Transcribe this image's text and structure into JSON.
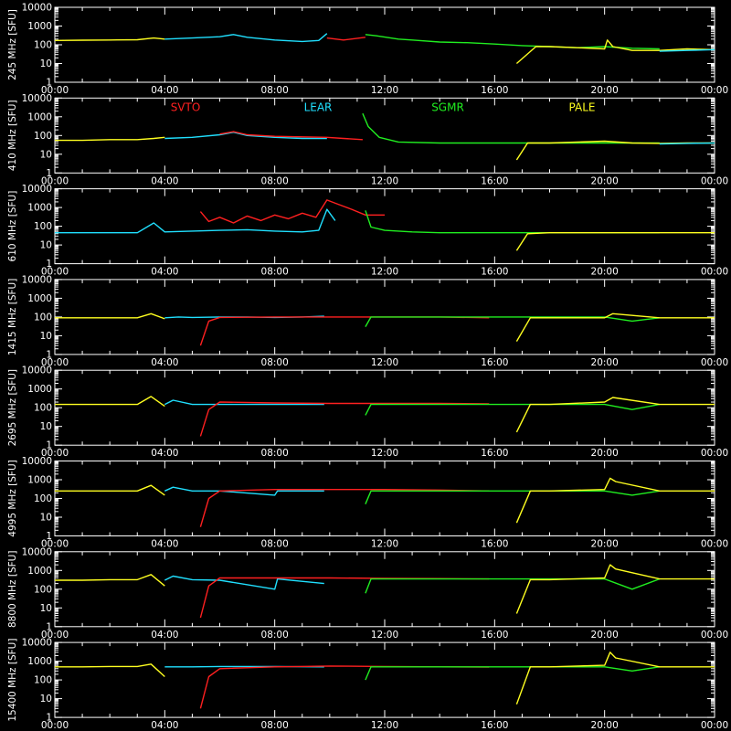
{
  "chart_data": {
    "type": "line",
    "background": "#000000",
    "axis_color": "#ffffff",
    "grid": false,
    "y_scale": "log",
    "ylim": [
      1,
      10000
    ],
    "x_range_hours": [
      0,
      24
    ],
    "y_ticks": [
      "10000",
      "1000",
      "100",
      "10",
      "1"
    ],
    "x_ticks": [
      "00:00",
      "04:00",
      "08:00",
      "12:00",
      "16:00",
      "20:00",
      "00:00"
    ],
    "legend": [
      {
        "name": "SVTO",
        "color": "#ff2020"
      },
      {
        "name": "LEAR",
        "color": "#20e0ff"
      },
      {
        "name": "SGMR",
        "color": "#20ee20"
      },
      {
        "name": "PALE",
        "color": "#ffff20"
      }
    ],
    "panels": [
      {
        "ylabel": "245 MHz [SFU]",
        "series": [
          {
            "name": "PALE",
            "x": [
              0,
              1,
              2,
              3,
              3.6,
              4.0
            ],
            "y": [
              170,
              175,
              180,
              185,
              230,
              200
            ]
          },
          {
            "name": "LEAR",
            "x": [
              4.0,
              5,
              6,
              6.5,
              7,
              8,
              9,
              9.6,
              9.9
            ],
            "y": [
              200,
              230,
              270,
              350,
              250,
              180,
              150,
              170,
              400
            ]
          },
          {
            "name": "SVTO",
            "x": [
              9.9,
              10.5,
              11.3
            ],
            "y": [
              230,
              180,
              250
            ]
          },
          {
            "name": "SGMR",
            "x": [
              11.3,
              11.7,
              12.5,
              13,
              14,
              15,
              16,
              17,
              18,
              19,
              20,
              21,
              22
            ],
            "y": [
              350,
              300,
              200,
              180,
              140,
              130,
              110,
              90,
              80,
              70,
              80,
              65,
              60
            ]
          },
          {
            "name": "PALE",
            "x": [
              16.8,
              17.5,
              18,
              19,
              20,
              20.1,
              20.3,
              21,
              22,
              23,
              24
            ],
            "y": [
              10,
              80,
              80,
              70,
              60,
              180,
              80,
              50,
              50,
              60,
              55
            ]
          },
          {
            "name": "LEAR",
            "x": [
              22,
              23,
              24
            ],
            "y": [
              45,
              50,
              55
            ]
          }
        ]
      },
      {
        "ylabel": "410 MHz [SFU]",
        "series": [
          {
            "name": "PALE",
            "x": [
              0,
              1,
              2,
              3,
              3.6,
              4.0
            ],
            "y": [
              55,
              55,
              60,
              60,
              70,
              80
            ]
          },
          {
            "name": "LEAR",
            "x": [
              4,
              5,
              6,
              6.5,
              7,
              8,
              9,
              9.9
            ],
            "y": [
              70,
              80,
              110,
              150,
              100,
              80,
              70,
              70
            ]
          },
          {
            "name": "SVTO",
            "x": [
              6,
              6.5,
              7,
              8,
              9.9,
              10.5,
              11.2
            ],
            "y": [
              120,
              160,
              110,
              90,
              80,
              70,
              60
            ]
          },
          {
            "name": "SGMR",
            "x": [
              11.2,
              11.4,
              11.8,
              12.5,
              14,
              16,
              17,
              18,
              20,
              21,
              22
            ],
            "y": [
              1500,
              300,
              80,
              45,
              40,
              40,
              40,
              40,
              40,
              40,
              40
            ]
          },
          {
            "name": "PALE",
            "x": [
              16.8,
              17.2,
              18,
              20,
              21,
              22,
              23,
              24
            ],
            "y": [
              5,
              40,
              40,
              50,
              40,
              38,
              40,
              40
            ]
          },
          {
            "name": "LEAR",
            "x": [
              22,
              23,
              24
            ],
            "y": [
              35,
              38,
              40
            ]
          }
        ]
      },
      {
        "ylabel": "610 MHz [SFU]",
        "series": [
          {
            "name": "LEAR",
            "x": [
              0,
              1,
              2,
              3,
              3.6,
              4,
              5,
              6,
              7,
              8,
              9,
              9.6,
              9.9,
              10.2
            ],
            "y": [
              45,
              45,
              45,
              45,
              150,
              50,
              55,
              60,
              65,
              55,
              50,
              60,
              800,
              200
            ]
          },
          {
            "name": "SVTO",
            "x": [
              5.3,
              5.6,
              6,
              6.5,
              7,
              7.5,
              8,
              8.5,
              9,
              9.5,
              9.9,
              10.3,
              10.8,
              11.3,
              12
            ],
            "y": [
              600,
              180,
              300,
              150,
              350,
              200,
              400,
              250,
              500,
              300,
              2500,
              1500,
              800,
              400,
              400
            ]
          },
          {
            "name": "SGMR",
            "x": [
              11.3,
              11.5,
              12,
              13,
              14,
              16,
              17,
              18,
              20,
              21,
              22
            ],
            "y": [
              700,
              90,
              60,
              50,
              45,
              45,
              45,
              45,
              45,
              45,
              45
            ]
          },
          {
            "name": "PALE",
            "x": [
              16.8,
              17.2,
              18,
              20,
              22,
              24
            ],
            "y": [
              5,
              40,
              45,
              45,
              45,
              45
            ]
          }
        ]
      },
      {
        "ylabel": "1415 MHz [SFU]",
        "series": [
          {
            "name": "PALE",
            "x": [
              0,
              1,
              2,
              3,
              3.5,
              4.0
            ],
            "y": [
              90,
              90,
              90,
              90,
              150,
              80
            ]
          },
          {
            "name": "LEAR",
            "x": [
              4,
              4.5,
              5,
              6,
              7,
              8,
              9,
              9.8
            ],
            "y": [
              90,
              100,
              95,
              100,
              100,
              95,
              100,
              110
            ]
          },
          {
            "name": "SVTO",
            "x": [
              5.3,
              5.6,
              6,
              8,
              10,
              11.3,
              14,
              15.8
            ],
            "y": [
              3,
              60,
              95,
              100,
              100,
              100,
              100,
              90
            ]
          },
          {
            "name": "SGMR",
            "x": [
              11.3,
              11.5,
              14,
              16,
              17,
              18,
              20,
              21,
              22
            ],
            "y": [
              30,
              100,
              100,
              100,
              100,
              100,
              100,
              60,
              90
            ]
          },
          {
            "name": "PALE",
            "x": [
              16.8,
              17.3,
              18,
              20,
              20.3,
              22,
              24
            ],
            "y": [
              5,
              90,
              90,
              90,
              150,
              90,
              90
            ]
          }
        ]
      },
      {
        "ylabel": "2695 MHz [SFU]",
        "series": [
          {
            "name": "PALE",
            "x": [
              0,
              1,
              2,
              3,
              3.5,
              4.0
            ],
            "y": [
              150,
              150,
              150,
              150,
              400,
              120
            ]
          },
          {
            "name": "LEAR",
            "x": [
              4,
              4.3,
              5,
              6,
              8,
              9.8
            ],
            "y": [
              150,
              250,
              150,
              150,
              150,
              150
            ]
          },
          {
            "name": "SVTO",
            "x": [
              5.3,
              5.6,
              6,
              8,
              10,
              12,
              14,
              15.8
            ],
            "y": [
              3,
              80,
              200,
              180,
              170,
              170,
              170,
              160
            ]
          },
          {
            "name": "SGMR",
            "x": [
              11.3,
              11.5,
              14,
              16,
              18,
              20,
              21,
              22
            ],
            "y": [
              40,
              150,
              150,
              150,
              150,
              150,
              80,
              150
            ]
          },
          {
            "name": "PALE",
            "x": [
              16.8,
              17.3,
              18,
              20,
              20.3,
              22,
              24
            ],
            "y": [
              5,
              150,
              150,
              200,
              350,
              150,
              150
            ]
          }
        ]
      },
      {
        "ylabel": "4995 MHz [SFU]",
        "series": [
          {
            "name": "PALE",
            "x": [
              0,
              1,
              2,
              3,
              3.5,
              4.0
            ],
            "y": [
              250,
              250,
              250,
              250,
              500,
              150
            ]
          },
          {
            "name": "LEAR",
            "x": [
              4,
              4.3,
              5,
              6,
              8,
              8.1,
              9.8
            ],
            "y": [
              250,
              400,
              250,
              250,
              150,
              250,
              250
            ]
          },
          {
            "name": "SVTO",
            "x": [
              5.3,
              5.6,
              6,
              8,
              10,
              12,
              14,
              15.8
            ],
            "y": [
              3,
              100,
              250,
              300,
              300,
              300,
              280,
              250
            ]
          },
          {
            "name": "SGMR",
            "x": [
              11.3,
              11.5,
              14,
              16,
              18,
              20,
              21,
              22
            ],
            "y": [
              50,
              250,
              250,
              250,
              250,
              250,
              150,
              250
            ]
          },
          {
            "name": "PALE",
            "x": [
              16.8,
              17.3,
              18,
              20,
              20.2,
              20.4,
              22,
              24
            ],
            "y": [
              5,
              250,
              250,
              300,
              1200,
              800,
              250,
              250
            ]
          }
        ]
      },
      {
        "ylabel": "8800 MHz [SFU]",
        "series": [
          {
            "name": "PALE",
            "x": [
              0,
              1,
              2,
              3,
              3.5,
              4.0
            ],
            "y": [
              300,
              300,
              320,
              320,
              600,
              150
            ]
          },
          {
            "name": "LEAR",
            "x": [
              4,
              4.3,
              5,
              6,
              8,
              8.1,
              9.8
            ],
            "y": [
              300,
              500,
              320,
              300,
              100,
              350,
              200
            ]
          },
          {
            "name": "SVTO",
            "x": [
              5.3,
              5.6,
              6,
              8,
              10,
              12,
              14,
              15.8
            ],
            "y": [
              3,
              150,
              400,
              400,
              400,
              380,
              370,
              350
            ]
          },
          {
            "name": "SGMR",
            "x": [
              11.3,
              11.5,
              14,
              16,
              18,
              20,
              21,
              22
            ],
            "y": [
              60,
              350,
              350,
              350,
              350,
              350,
              100,
              350
            ]
          },
          {
            "name": "PALE",
            "x": [
              16.8,
              17.3,
              18,
              20,
              20.2,
              20.4,
              22,
              24
            ],
            "y": [
              5,
              320,
              320,
              400,
              2000,
              1200,
              350,
              350
            ]
          }
        ]
      },
      {
        "ylabel": "15400 MHz [SFU]",
        "series": [
          {
            "name": "PALE",
            "x": [
              0,
              1,
              2,
              3,
              3.5,
              4.0
            ],
            "y": [
              500,
              500,
              520,
              520,
              700,
              150
            ]
          },
          {
            "name": "LEAR",
            "x": [
              4,
              5,
              6,
              8,
              9.8
            ],
            "y": [
              500,
              500,
              520,
              520,
              500
            ]
          },
          {
            "name": "SVTO",
            "x": [
              5.3,
              5.6,
              6,
              8,
              10,
              12,
              14,
              15.8
            ],
            "y": [
              3,
              150,
              400,
              500,
              550,
              520,
              500,
              480
            ]
          },
          {
            "name": "SGMR",
            "x": [
              11.3,
              11.5,
              14,
              16,
              18,
              20,
              21,
              22
            ],
            "y": [
              100,
              500,
              500,
              500,
              500,
              500,
              300,
              500
            ]
          },
          {
            "name": "PALE",
            "x": [
              16.8,
              17.3,
              18,
              20,
              20.2,
              20.4,
              22,
              24
            ],
            "y": [
              5,
              500,
              500,
              600,
              3000,
              1500,
              500,
              500
            ]
          }
        ]
      }
    ]
  }
}
